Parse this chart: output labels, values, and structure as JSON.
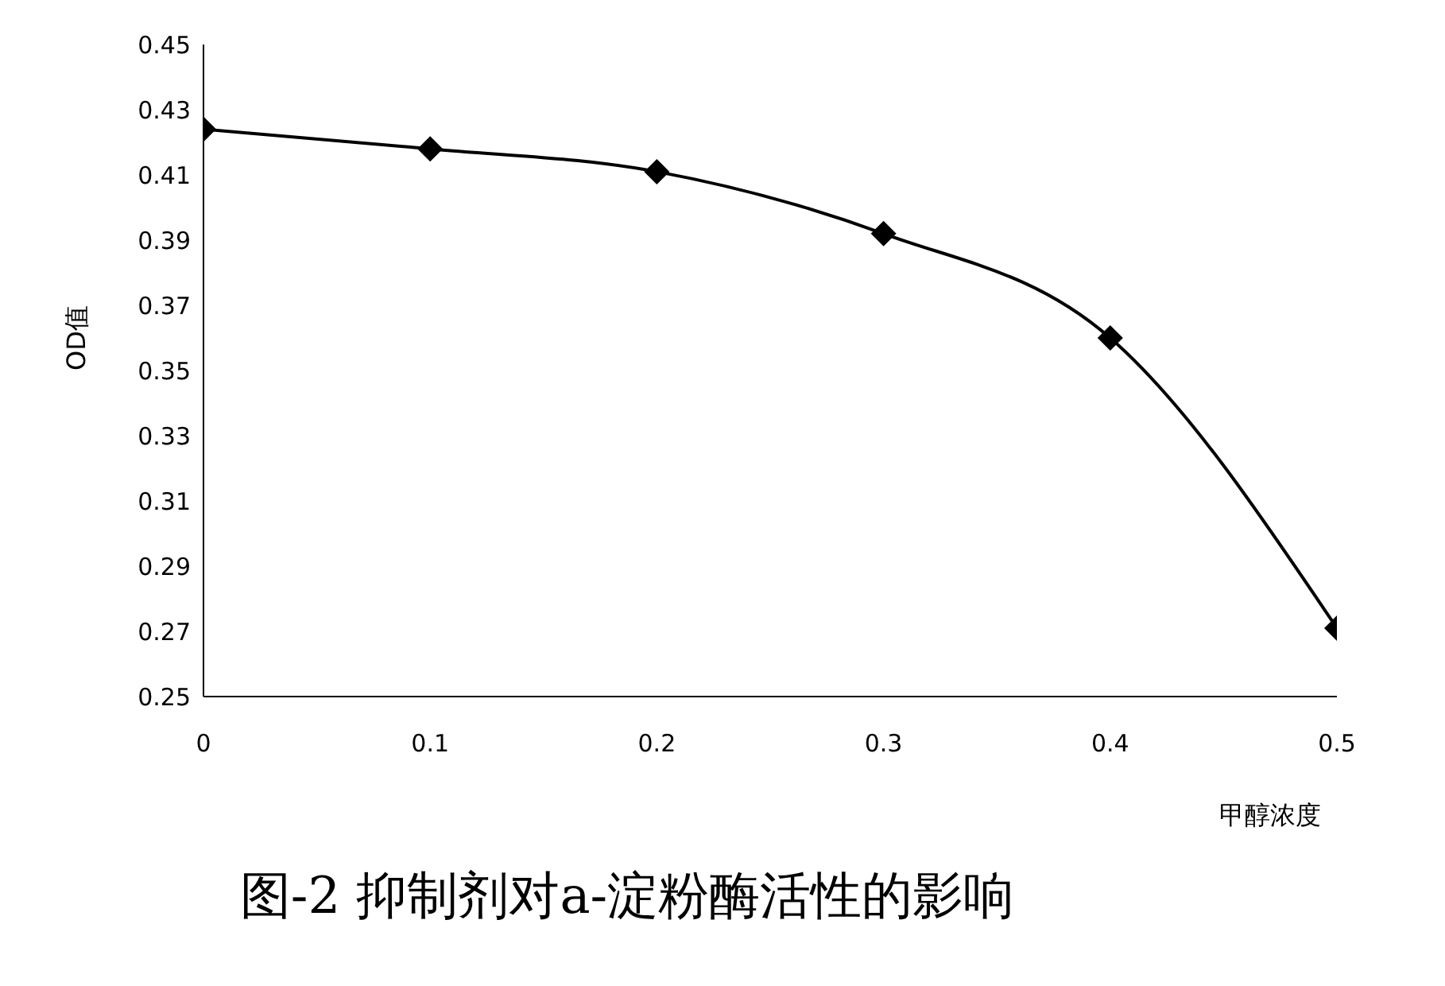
{
  "chart_data": {
    "type": "line",
    "xlabel": "甲醇浓度",
    "ylabel": "OD值",
    "annotations": [
      "图-2 抑制剂对a-淀粉酶活性的影响"
    ],
    "x": [
      0,
      0.1,
      0.2,
      0.3,
      0.4,
      0.5
    ],
    "series": [
      {
        "color": "#000000",
        "values": [
          0.424,
          0.418,
          0.411,
          0.392,
          0.36,
          0.271
        ]
      }
    ],
    "xlim": [
      0,
      0.5
    ],
    "xticks": [
      0,
      0.1,
      0.2,
      0.3,
      0.4,
      0.5
    ],
    "ylim": [
      0.25,
      0.45
    ],
    "yticks": [
      0.25,
      0.27,
      0.29,
      0.31,
      0.33,
      0.35,
      0.37,
      0.39,
      0.41,
      0.43,
      0.45
    ],
    "grid": false,
    "legend": false,
    "marker": "diamond",
    "line_style": "solid"
  }
}
